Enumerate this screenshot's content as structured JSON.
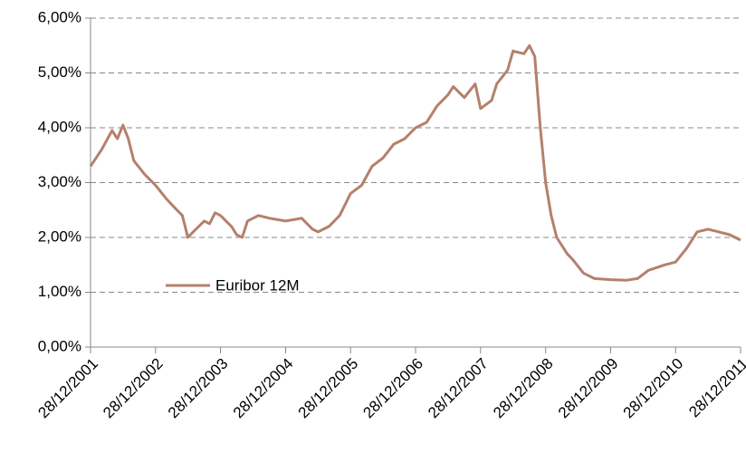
{
  "chart_data": {
    "type": "line",
    "series": [
      {
        "name": "Euribor 12M",
        "color": "#b5806c",
        "x": [
          "28/12/2001",
          "28/02/2002",
          "28/04/2002",
          "28/05/2002",
          "28/06/2002",
          "28/07/2002",
          "28/08/2002",
          "28/10/2002",
          "28/12/2002",
          "28/02/2003",
          "28/04/2003",
          "28/05/2003",
          "28/06/2003",
          "28/07/2003",
          "28/09/2003",
          "28/10/2003",
          "28/11/2003",
          "28/12/2003",
          "28/02/2004",
          "28/03/2004",
          "28/04/2004",
          "28/05/2004",
          "28/07/2004",
          "28/09/2004",
          "28/12/2004",
          "28/03/2005",
          "28/05/2005",
          "28/06/2005",
          "28/08/2005",
          "28/10/2005",
          "28/12/2005",
          "28/02/2006",
          "28/04/2006",
          "28/06/2006",
          "28/08/2006",
          "28/10/2006",
          "28/12/2006",
          "28/02/2007",
          "28/04/2007",
          "28/06/2007",
          "28/07/2007",
          "28/09/2007",
          "28/11/2007",
          "28/12/2007",
          "28/02/2008",
          "28/03/2008",
          "28/05/2008",
          "28/06/2008",
          "28/08/2008",
          "28/09/2008",
          "28/10/2008",
          "28/11/2008",
          "28/12/2008",
          "28/01/2009",
          "28/02/2009",
          "28/04/2009",
          "28/05/2009",
          "28/07/2009",
          "28/09/2009",
          "28/12/2009",
          "28/03/2010",
          "28/05/2010",
          "28/07/2010",
          "28/10/2010",
          "28/12/2010",
          "28/02/2011",
          "28/04/2011",
          "28/06/2011",
          "28/08/2011",
          "28/10/2011",
          "28/12/2011"
        ],
        "values": [
          3.3,
          3.6,
          3.95,
          3.8,
          4.05,
          3.8,
          3.4,
          3.15,
          2.95,
          2.7,
          2.5,
          2.4,
          2.0,
          2.1,
          2.3,
          2.25,
          2.45,
          2.4,
          2.2,
          2.05,
          2.0,
          2.3,
          2.4,
          2.35,
          2.3,
          2.35,
          2.15,
          2.1,
          2.2,
          2.4,
          2.8,
          2.95,
          3.3,
          3.45,
          3.7,
          3.8,
          4.0,
          4.1,
          4.4,
          4.6,
          4.75,
          4.55,
          4.8,
          4.35,
          4.5,
          4.8,
          5.05,
          5.4,
          5.35,
          5.5,
          5.3,
          4.0,
          3.0,
          2.4,
          2.0,
          1.7,
          1.6,
          1.35,
          1.25,
          1.23,
          1.22,
          1.25,
          1.4,
          1.5,
          1.55,
          1.8,
          2.1,
          2.15,
          2.1,
          2.05,
          1.95
        ]
      }
    ],
    "xlim": [
      "28/12/2001",
      "28/12/2011"
    ],
    "xticks": [
      "28/12/2001",
      "28/12/2002",
      "28/12/2003",
      "28/12/2004",
      "28/12/2005",
      "28/12/2006",
      "28/12/2007",
      "28/12/2008",
      "28/12/2009",
      "28/12/2010",
      "28/12/2011"
    ],
    "ylim": [
      0,
      6
    ],
    "yticks": [
      {
        "value": 0,
        "label": "0,00%"
      },
      {
        "value": 1,
        "label": "1,00%"
      },
      {
        "value": 2,
        "label": "2,00%"
      },
      {
        "value": 3,
        "label": "3,00%"
      },
      {
        "value": 4,
        "label": "4,00%"
      },
      {
        "value": 5,
        "label": "5,00%"
      },
      {
        "value": 6,
        "label": "6,00%"
      }
    ],
    "grid": true
  }
}
